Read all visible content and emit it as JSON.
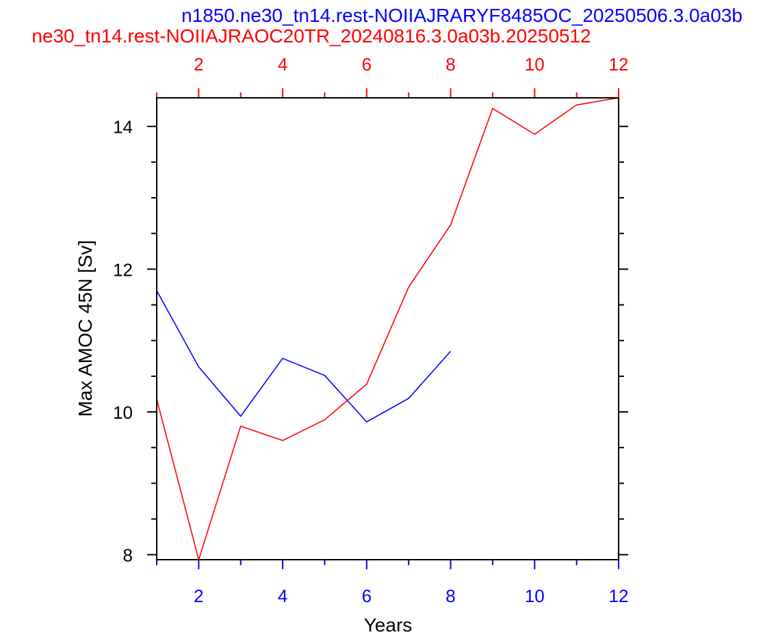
{
  "chart_data": {
    "type": "line",
    "titles": {
      "blue": "n1850.ne30_tn14.rest-NOIIAJRARYF8485OC_20250506.3.0a03b",
      "red": "ne30_tn14.rest-NOIIAJRAOC20TR_20240816.3.0a03b.20250512"
    },
    "xlabel": "Years",
    "ylabel": "Max AMOC 45N [Sv]",
    "xlim": [
      1,
      12
    ],
    "ylim": [
      7.93,
      14.4
    ],
    "x_ticks": [
      2,
      4,
      6,
      8,
      10,
      12
    ],
    "y_ticks": [
      8,
      10,
      12,
      14
    ],
    "y_minor_step": 0.5,
    "colors": {
      "blue": "#0000ff",
      "red": "#ff0000",
      "axis": "#000000"
    },
    "series": [
      {
        "color": "blue",
        "x": [
          1,
          2,
          3,
          4,
          5,
          6,
          7,
          8
        ],
        "values": [
          11.7,
          10.63,
          9.94,
          10.75,
          10.51,
          9.86,
          10.19,
          10.85
        ]
      },
      {
        "color": "red",
        "x": [
          1,
          2,
          3,
          4,
          5,
          6,
          7,
          8,
          9,
          10,
          11,
          12
        ],
        "values": [
          10.18,
          7.93,
          9.8,
          9.6,
          9.89,
          10.39,
          11.75,
          12.62,
          14.25,
          13.89,
          14.3,
          14.4
        ]
      }
    ]
  }
}
